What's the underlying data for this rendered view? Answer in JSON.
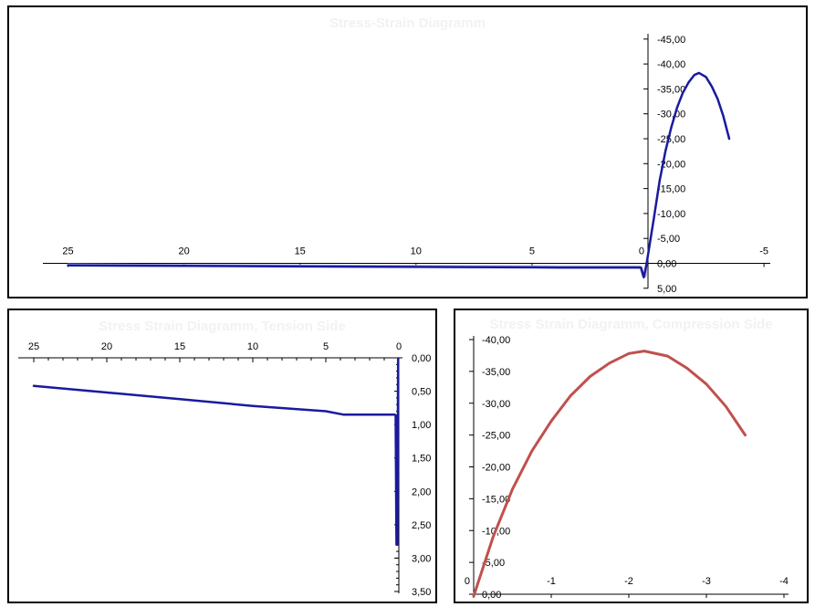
{
  "window": {
    "background": "#ffffff",
    "panel_border_color": "#000000"
  },
  "colors": {
    "primary_line": "#1a1a9e",
    "secondary_line": "#a9b0e4",
    "compression_line": "#c0504d",
    "axis": "#000000",
    "ghost_title": "#f2f2f2"
  },
  "chart_data": [
    {
      "id": "overview",
      "type": "line",
      "title": "Stress-Strain Diagramm",
      "xlabel": "",
      "ylabel": "",
      "x_axis_reversed": true,
      "y_axis_reversed": true,
      "xlim": [
        26,
        -5.3
      ],
      "ylim": [
        5.5,
        -46
      ],
      "x_tick_values": [
        25,
        20,
        15,
        10,
        5,
        0,
        -5
      ],
      "x_tick_labels": [
        "25",
        "20",
        "15",
        "10",
        "5",
        "0",
        "-5"
      ],
      "y_tick_values": [
        -45,
        -40,
        -35,
        -30,
        -25,
        -20,
        -15,
        -10,
        -5,
        0,
        5
      ],
      "y_tick_labels": [
        "-45,00",
        "-40,00",
        "-35,00",
        "-30,00",
        "-25,00",
        "-20,00",
        "-15,00",
        "-10,00",
        "-5,00",
        "0,00",
        "5,00"
      ],
      "grid": false,
      "legend": false,
      "series": [
        {
          "name": "secondary-stress-strain",
          "color": "#a9b0e4",
          "width": 2,
          "points": [
            [
              25,
              0.2
            ],
            [
              20,
              0.32
            ],
            [
              15,
              0.42
            ],
            [
              10,
              0.52
            ],
            [
              5,
              0.6
            ],
            [
              3.8,
              0.62
            ],
            [
              0.35,
              0.62
            ],
            [
              0.22,
              2.6
            ],
            [
              0.1,
              2.6
            ],
            [
              0.05,
              0.0
            ]
          ]
        },
        {
          "name": "stress-strain",
          "color": "#1a1a9e",
          "width": 2.5,
          "points": [
            [
              25,
              0.42
            ],
            [
              20,
              0.52
            ],
            [
              15,
              0.62
            ],
            [
              10,
              0.72
            ],
            [
              5,
              0.8
            ],
            [
              3.8,
              0.85
            ],
            [
              0.3,
              0.85
            ],
            [
              0.18,
              2.8
            ],
            [
              0.06,
              0.05
            ],
            [
              -0.25,
              -9
            ],
            [
              -0.5,
              -16.5
            ],
            [
              -0.75,
              -22.5
            ],
            [
              -1,
              -27.2
            ],
            [
              -1.25,
              -31.2
            ],
            [
              -1.5,
              -34.2
            ],
            [
              -1.75,
              -36.3
            ],
            [
              -2,
              -37.8
            ],
            [
              -2.2,
              -38.2
            ],
            [
              -2.5,
              -37.4
            ],
            [
              -2.75,
              -35.5
            ],
            [
              -3,
              -33
            ],
            [
              -3.25,
              -29.5
            ],
            [
              -3.5,
              -25
            ]
          ]
        }
      ]
    },
    {
      "id": "tension",
      "type": "line",
      "title": "Stress Strain Diagramm, Tension Side",
      "xlabel": "",
      "ylabel": "",
      "x_axis_reversed": true,
      "y_axis_reversed": true,
      "xlim": [
        26,
        -0.5
      ],
      "ylim": [
        0,
        3.55
      ],
      "x_tick_values": [
        25,
        20,
        15,
        10,
        5,
        0
      ],
      "x_tick_labels": [
        "25",
        "20",
        "15",
        "10",
        "5",
        "0"
      ],
      "x_minor_tick_step": 1,
      "y_tick_values": [
        0,
        0.5,
        1,
        1.5,
        2,
        2.5,
        3,
        3.5
      ],
      "y_tick_labels": [
        "0,00",
        "0,50",
        "1,00",
        "1,50",
        "2,00",
        "2,50",
        "3,00",
        "3,50"
      ],
      "y_minor_tick_step": 0.1,
      "grid": false,
      "legend": false,
      "series": [
        {
          "name": "tension-stress-strain",
          "color": "#1a1a9e",
          "width": 2.5,
          "points": [
            [
              25,
              0.42
            ],
            [
              20,
              0.52
            ],
            [
              15,
              0.62
            ],
            [
              10,
              0.72
            ],
            [
              5,
              0.8
            ],
            [
              3.8,
              0.85
            ],
            [
              0.3,
              0.85
            ],
            [
              0.22,
              0.86
            ],
            [
              0.16,
              2.8
            ],
            [
              0.1,
              2.8
            ],
            [
              0.05,
              0.02
            ]
          ]
        }
      ]
    },
    {
      "id": "compression",
      "type": "line",
      "title": "Stress Strain Diagramm, Compression Side",
      "xlabel": "",
      "ylabel": "",
      "x_axis_reversed": true,
      "y_axis_reversed": true,
      "xlim": [
        0.1,
        -4.1
      ],
      "ylim": [
        0.5,
        -40.5
      ],
      "x_tick_values": [
        0,
        -1,
        -2,
        -3,
        -4
      ],
      "x_tick_labels": [
        "0",
        "-1",
        "-2",
        "-3",
        "-4"
      ],
      "y_tick_values": [
        -40,
        -35,
        -30,
        -25,
        -20,
        -15,
        -10,
        -5,
        0
      ],
      "y_tick_labels": [
        "-40,00",
        "-35,00",
        "-30,00",
        "-25,00",
        "-20,00",
        "-15,00",
        "-10,00",
        "-5,00",
        "0,00"
      ],
      "grid": false,
      "legend": false,
      "series": [
        {
          "name": "compression-stress-strain",
          "color": "#c0504d",
          "width": 3,
          "points": [
            [
              0,
              0.3
            ],
            [
              -0.25,
              -9
            ],
            [
              -0.5,
              -16.5
            ],
            [
              -0.75,
              -22.5
            ],
            [
              -1,
              -27.2
            ],
            [
              -1.25,
              -31.2
            ],
            [
              -1.5,
              -34.2
            ],
            [
              -1.75,
              -36.3
            ],
            [
              -2,
              -37.8
            ],
            [
              -2.2,
              -38.2
            ],
            [
              -2.5,
              -37.4
            ],
            [
              -2.75,
              -35.5
            ],
            [
              -3,
              -33
            ],
            [
              -3.25,
              -29.5
            ],
            [
              -3.5,
              -25
            ]
          ]
        }
      ]
    }
  ]
}
